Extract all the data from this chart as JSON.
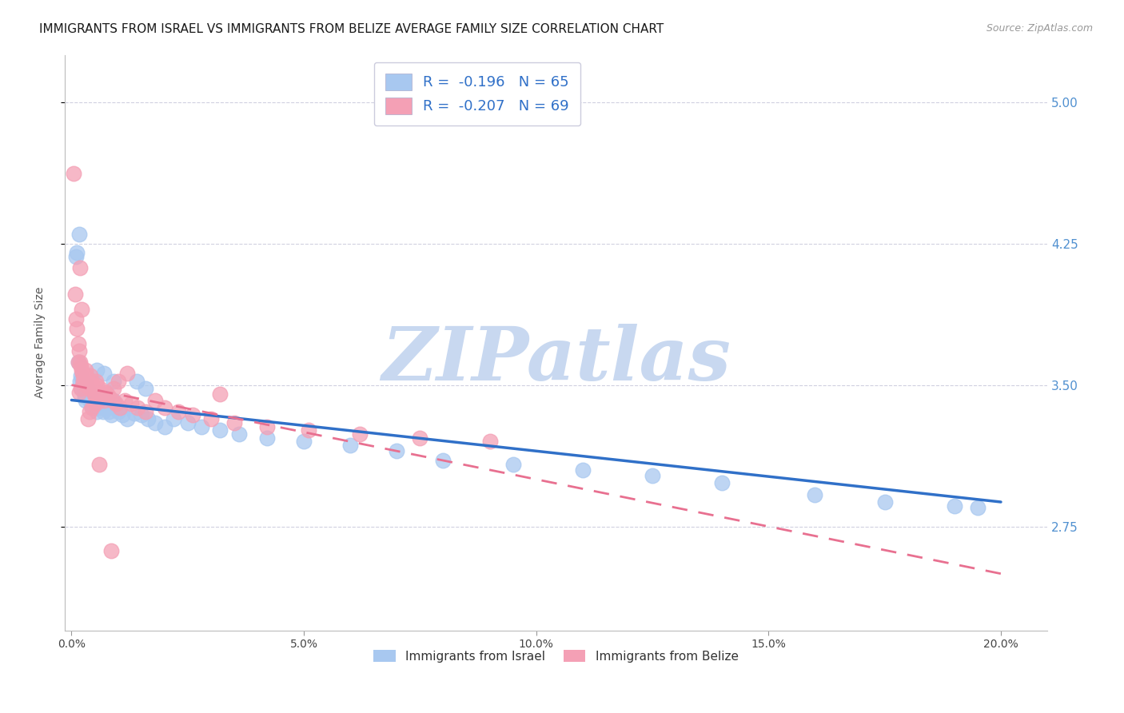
{
  "title": "IMMIGRANTS FROM ISRAEL VS IMMIGRANTS FROM BELIZE AVERAGE FAMILY SIZE CORRELATION CHART",
  "source": "Source: ZipAtlas.com",
  "ylabel": "Average Family Size",
  "xlabel_ticks": [
    "0.0%",
    "5.0%",
    "10.0%",
    "15.0%",
    "20.0%"
  ],
  "xlabel_vals": [
    0.0,
    5.0,
    10.0,
    15.0,
    20.0
  ],
  "yticks": [
    2.75,
    3.5,
    4.25,
    5.0
  ],
  "ylim": [
    2.2,
    5.25
  ],
  "xlim": [
    -0.15,
    21.0
  ],
  "israel_color": "#A8C8F0",
  "belize_color": "#F4A0B5",
  "israel_line_color": "#3070C8",
  "belize_line_color": "#E87090",
  "legend_israel_label": "R =  -0.196   N = 65",
  "legend_belize_label": "R =  -0.207   N = 69",
  "legend1_label": "Immigrants from Israel",
  "legend2_label": "Immigrants from Belize",
  "watermark": "ZIPatlas",
  "watermark_color": "#C8D8F0",
  "title_fontsize": 11,
  "axis_label_fontsize": 10,
  "tick_fontsize": 10,
  "source_fontsize": 9,
  "grid_color": "#D0D0E0",
  "background_color": "#FFFFFF",
  "right_tick_color": "#5090D0",
  "israel_x": [
    0.1,
    0.12,
    0.14,
    0.16,
    0.18,
    0.2,
    0.22,
    0.24,
    0.26,
    0.28,
    0.3,
    0.32,
    0.34,
    0.36,
    0.38,
    0.4,
    0.42,
    0.44,
    0.46,
    0.48,
    0.5,
    0.52,
    0.54,
    0.56,
    0.6,
    0.62,
    0.65,
    0.68,
    0.72,
    0.76,
    0.8,
    0.85,
    0.9,
    0.95,
    1.0,
    1.1,
    1.2,
    1.35,
    1.5,
    1.65,
    1.8,
    2.0,
    2.2,
    2.5,
    2.8,
    3.2,
    3.6,
    4.2,
    5.0,
    6.0,
    7.0,
    8.0,
    9.5,
    11.0,
    12.5,
    14.0,
    16.0,
    17.5,
    19.0,
    19.5,
    1.6,
    1.4,
    0.55,
    0.7,
    0.9
  ],
  "israel_y": [
    4.18,
    4.2,
    3.62,
    4.3,
    3.52,
    3.55,
    3.48,
    3.52,
    3.46,
    3.44,
    3.42,
    3.5,
    3.48,
    3.45,
    3.44,
    3.42,
    3.4,
    3.38,
    3.44,
    3.42,
    3.4,
    3.38,
    3.36,
    3.4,
    3.38,
    3.44,
    3.42,
    3.36,
    3.4,
    3.38,
    3.36,
    3.34,
    3.42,
    3.38,
    3.36,
    3.34,
    3.32,
    3.35,
    3.34,
    3.32,
    3.3,
    3.28,
    3.32,
    3.3,
    3.28,
    3.26,
    3.24,
    3.22,
    3.2,
    3.18,
    3.15,
    3.1,
    3.08,
    3.05,
    3.02,
    2.98,
    2.92,
    2.88,
    2.86,
    2.85,
    3.48,
    3.52,
    3.58,
    3.56,
    3.52
  ],
  "belize_x": [
    0.05,
    0.08,
    0.1,
    0.12,
    0.14,
    0.16,
    0.18,
    0.2,
    0.22,
    0.24,
    0.26,
    0.28,
    0.3,
    0.32,
    0.34,
    0.36,
    0.38,
    0.4,
    0.42,
    0.44,
    0.46,
    0.48,
    0.5,
    0.52,
    0.55,
    0.58,
    0.62,
    0.66,
    0.7,
    0.75,
    0.8,
    0.88,
    0.95,
    1.05,
    1.15,
    1.28,
    1.42,
    1.6,
    1.8,
    2.0,
    2.3,
    2.6,
    3.0,
    3.5,
    4.2,
    5.1,
    6.2,
    7.5,
    9.0,
    3.2,
    1.2,
    1.0,
    0.9,
    0.75,
    0.68,
    0.58,
    0.5,
    0.44,
    0.38,
    0.3,
    0.25,
    0.2,
    0.16,
    0.14,
    0.18,
    0.22,
    0.36,
    0.6,
    0.85
  ],
  "belize_y": [
    4.62,
    3.98,
    3.85,
    3.8,
    3.72,
    3.68,
    3.62,
    3.6,
    3.58,
    3.56,
    3.54,
    3.52,
    3.58,
    3.55,
    3.52,
    3.5,
    3.48,
    3.55,
    3.52,
    3.5,
    3.48,
    3.46,
    3.44,
    3.52,
    3.5,
    3.46,
    3.48,
    3.44,
    3.42,
    3.45,
    3.44,
    3.42,
    3.4,
    3.38,
    3.42,
    3.4,
    3.38,
    3.36,
    3.42,
    3.38,
    3.36,
    3.34,
    3.32,
    3.3,
    3.28,
    3.26,
    3.24,
    3.22,
    3.2,
    3.45,
    3.56,
    3.52,
    3.48,
    3.46,
    3.44,
    3.42,
    3.4,
    3.38,
    3.36,
    3.5,
    3.52,
    3.48,
    3.46,
    3.62,
    4.12,
    3.9,
    3.32,
    3.08,
    2.62
  ]
}
